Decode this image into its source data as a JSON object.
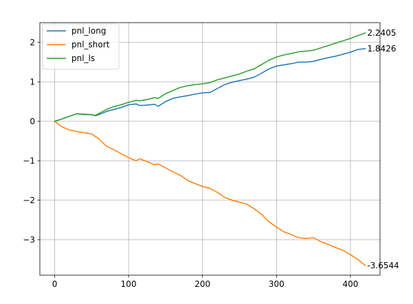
{
  "chart_data": {
    "type": "line",
    "title": "",
    "xlabel": "",
    "ylabel": "",
    "xlim": [
      -20,
      440
    ],
    "ylim": [
      -3.9,
      2.5
    ],
    "grid": true,
    "legend_position": "top-left",
    "x_ticks": [
      0,
      100,
      200,
      300,
      400
    ],
    "x_tick_labels": [
      "0",
      "100",
      "200",
      "300",
      "400"
    ],
    "y_ticks": [
      -3,
      -2,
      -1,
      0,
      1,
      2
    ],
    "y_tick_labels": [
      "−3",
      "−2",
      "−1",
      "0",
      "1",
      "2"
    ],
    "series": [
      {
        "name": "pnl_long",
        "color": "#1f77b4",
        "x": [
          0,
          10,
          20,
          30,
          40,
          50,
          55,
          60,
          70,
          80,
          90,
          100,
          110,
          115,
          125,
          135,
          140,
          150,
          160,
          170,
          180,
          190,
          200,
          210,
          220,
          230,
          240,
          250,
          260,
          270,
          280,
          290,
          300,
          310,
          320,
          330,
          340,
          350,
          360,
          370,
          380,
          390,
          400,
          410,
          420
        ],
        "values": [
          0,
          0.06,
          0.13,
          0.19,
          0.17,
          0.17,
          0.14,
          0.17,
          0.25,
          0.3,
          0.35,
          0.42,
          0.44,
          0.4,
          0.41,
          0.43,
          0.38,
          0.5,
          0.58,
          0.62,
          0.65,
          0.69,
          0.72,
          0.73,
          0.83,
          0.93,
          0.99,
          1.03,
          1.07,
          1.12,
          1.22,
          1.33,
          1.4,
          1.43,
          1.46,
          1.5,
          1.5,
          1.52,
          1.57,
          1.61,
          1.65,
          1.7,
          1.75,
          1.82,
          1.8426
        ],
        "end_label": "1.8426"
      },
      {
        "name": "pnl_short",
        "color": "#ff7f0e",
        "x": [
          0,
          10,
          20,
          30,
          40,
          50,
          60,
          70,
          80,
          90,
          100,
          110,
          115,
          125,
          135,
          140,
          150,
          160,
          170,
          180,
          190,
          200,
          210,
          220,
          230,
          240,
          250,
          260,
          270,
          280,
          290,
          300,
          310,
          320,
          330,
          340,
          350,
          360,
          370,
          380,
          390,
          400,
          410,
          420
        ],
        "values": [
          0,
          -0.14,
          -0.22,
          -0.26,
          -0.29,
          -0.32,
          -0.45,
          -0.63,
          -0.72,
          -0.82,
          -0.92,
          -1.0,
          -0.95,
          -1.02,
          -1.1,
          -1.08,
          -1.18,
          -1.28,
          -1.37,
          -1.5,
          -1.58,
          -1.65,
          -1.7,
          -1.8,
          -1.93,
          -2.0,
          -2.05,
          -2.1,
          -2.22,
          -2.36,
          -2.55,
          -2.68,
          -2.8,
          -2.87,
          -2.95,
          -2.97,
          -2.95,
          -3.05,
          -3.12,
          -3.2,
          -3.27,
          -3.38,
          -3.5,
          -3.6544
        ],
        "end_label": "-3.6544"
      },
      {
        "name": "pnl_ls",
        "color": "#2ca02c",
        "x": [
          0,
          10,
          20,
          30,
          40,
          50,
          55,
          60,
          70,
          80,
          90,
          100,
          110,
          115,
          125,
          135,
          140,
          150,
          160,
          170,
          180,
          190,
          200,
          210,
          220,
          230,
          240,
          250,
          260,
          270,
          280,
          290,
          300,
          310,
          320,
          330,
          340,
          350,
          360,
          370,
          380,
          390,
          400,
          410,
          420
        ],
        "values": [
          0,
          0.06,
          0.13,
          0.19,
          0.18,
          0.17,
          0.15,
          0.2,
          0.3,
          0.37,
          0.42,
          0.48,
          0.53,
          0.52,
          0.55,
          0.6,
          0.58,
          0.7,
          0.78,
          0.86,
          0.9,
          0.93,
          0.95,
          0.98,
          1.05,
          1.1,
          1.15,
          1.2,
          1.27,
          1.33,
          1.44,
          1.55,
          1.63,
          1.68,
          1.72,
          1.76,
          1.78,
          1.8,
          1.86,
          1.92,
          1.98,
          2.04,
          2.1,
          2.17,
          2.2405
        ],
        "end_label": "2.2405"
      }
    ]
  }
}
